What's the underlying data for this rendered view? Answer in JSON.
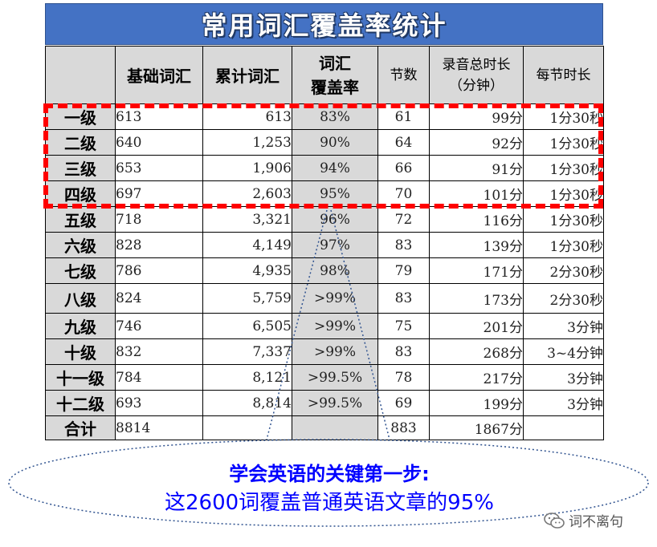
{
  "title": "常用词汇覆盖率统计",
  "table": {
    "headers": {
      "basic": "基础词汇",
      "cumulative": "累计词汇",
      "coverage_line1": "词汇",
      "coverage_line2": "覆盖率",
      "lessons": "节数",
      "total_line1": "录音总时长",
      "total_line2": "（分钟）",
      "per_lesson": "每节时长"
    },
    "rows": [
      {
        "level": "一级",
        "basic": "613",
        "cumulative": "613",
        "coverage": "83%",
        "lessons": "61",
        "total": "99分",
        "per": "1分30秒"
      },
      {
        "level": "二级",
        "basic": "640",
        "cumulative": "1,253",
        "coverage": "90%",
        "lessons": "64",
        "total": "92分",
        "per": "1分30秒"
      },
      {
        "level": "三级",
        "basic": "653",
        "cumulative": "1,906",
        "coverage": "94%",
        "lessons": "66",
        "total": "91分",
        "per": "1分30秒"
      },
      {
        "level": "四级",
        "basic": "697",
        "cumulative": "2,603",
        "coverage": "95%",
        "lessons": "70",
        "total": "101分",
        "per": "1分30秒"
      },
      {
        "level": "五级",
        "basic": "718",
        "cumulative": "3,321",
        "coverage": "96%",
        "lessons": "72",
        "total": "116分",
        "per": "1分30秒"
      },
      {
        "level": "六级",
        "basic": "828",
        "cumulative": "4,149",
        "coverage": "97%",
        "lessons": "83",
        "total": "139分",
        "per": "1分30秒"
      },
      {
        "level": "七级",
        "basic": "786",
        "cumulative": "4,935",
        "coverage": "98%",
        "lessons": "79",
        "total": "171分",
        "per": "2分30秒"
      },
      {
        "level": "八级",
        "basic": "824",
        "cumulative": "5,759",
        "coverage": ">99%",
        "lessons": "83",
        "total": "173分",
        "per": "2分30秒"
      },
      {
        "level": "九级",
        "basic": "746",
        "cumulative": "6,505",
        "coverage": ">99%",
        "lessons": "75",
        "total": "201分",
        "per": "3分钟"
      },
      {
        "level": "十级",
        "basic": "832",
        "cumulative": "7,337",
        "coverage": ">99%",
        "lessons": "83",
        "total": "268分",
        "per": "3~4分钟"
      },
      {
        "level": "十一级",
        "basic": "784",
        "cumulative": "8,121",
        "coverage": ">99.5%",
        "lessons": "78",
        "total": "217分",
        "per": "3分钟"
      },
      {
        "level": "十二级",
        "basic": "693",
        "cumulative": "8,814",
        "coverage": ">99.5%",
        "lessons": "69",
        "total": "199分",
        "per": "3分钟"
      }
    ],
    "total_row": {
      "level": "合计",
      "basic": "8814",
      "cumulative": "",
      "coverage": "",
      "lessons": "883",
      "total": "1867分",
      "per": ""
    }
  },
  "callout": {
    "line1": "学会英语的关键第一步:",
    "line2": "这2600词覆盖普通英语文章的95%"
  },
  "watermark": {
    "text": "词不离句",
    "icon": "wechat-icon"
  },
  "colors": {
    "title_bg": "#4472c4",
    "header_bg": "#d9d9d9",
    "highlight_border": "#ff0000",
    "callout_text": "#0000ff"
  }
}
